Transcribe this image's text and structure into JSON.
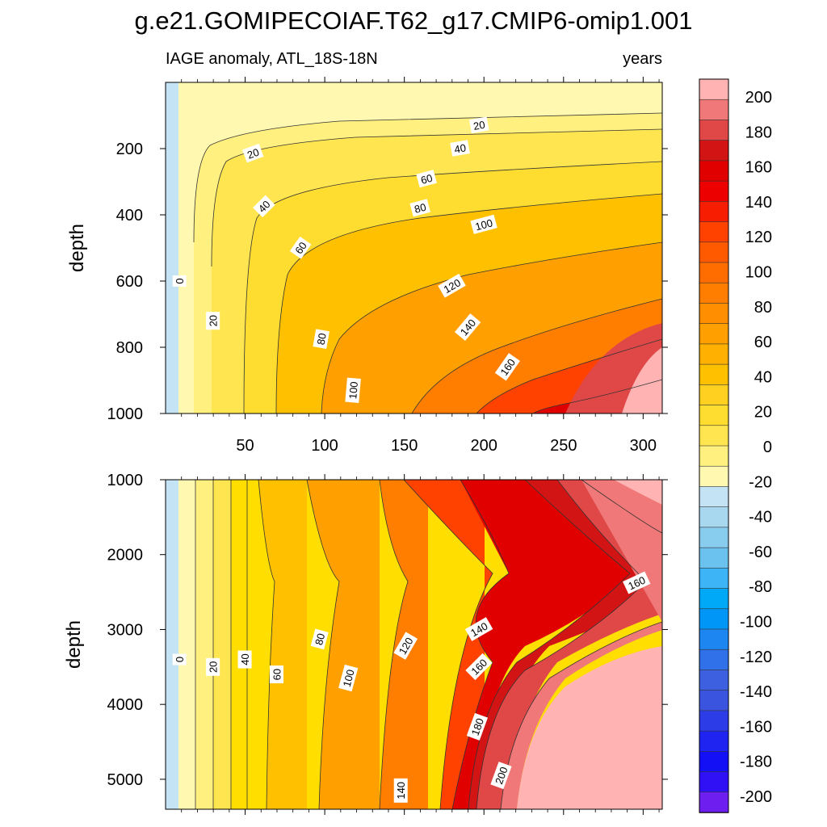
{
  "figure": {
    "title": "g.e21.GOMIPECOIAF.T62_g17.CMIP6-omip1.001",
    "subtitle_left": "IAGE anomaly, ATL_18S-18N",
    "subtitle_right": "years"
  },
  "chart_data": [
    {
      "type": "contour",
      "panel": "upper",
      "title": "IAGE anomaly, ATL_18S-18N",
      "units": "years",
      "xlabel": "",
      "ylabel": "depth",
      "xlim": [
        0,
        312
      ],
      "ylim": [
        1000,
        0
      ],
      "xticks": [
        50,
        100,
        150,
        200,
        250,
        300
      ],
      "yticks": [
        200,
        400,
        600,
        800,
        1000
      ],
      "contour_labels": [
        {
          "text": "0",
          "x": 9,
          "y": 600,
          "angle": -90
        },
        {
          "text": "20",
          "x": 30,
          "y": 720,
          "angle": -90
        },
        {
          "text": "20",
          "x": 55,
          "y": 215,
          "angle": -20
        },
        {
          "text": "40",
          "x": 62,
          "y": 375,
          "angle": -45
        },
        {
          "text": "60",
          "x": 85,
          "y": 500,
          "angle": -55
        },
        {
          "text": "80",
          "x": 98,
          "y": 775,
          "angle": -80
        },
        {
          "text": "100",
          "x": 118,
          "y": 930,
          "angle": -85
        },
        {
          "text": "20",
          "x": 197,
          "y": 130,
          "angle": -10
        },
        {
          "text": "40",
          "x": 185,
          "y": 200,
          "angle": -10
        },
        {
          "text": "60",
          "x": 164,
          "y": 292,
          "angle": -15
        },
        {
          "text": "80",
          "x": 160,
          "y": 380,
          "angle": -15
        },
        {
          "text": "100",
          "x": 200,
          "y": 430,
          "angle": -15
        },
        {
          "text": "120",
          "x": 180,
          "y": 615,
          "angle": -30
        },
        {
          "text": "140",
          "x": 190,
          "y": 740,
          "angle": -50
        },
        {
          "text": "160",
          "x": 215,
          "y": 860,
          "angle": -55
        }
      ]
    },
    {
      "type": "contour",
      "panel": "lower",
      "title": "",
      "units": "years",
      "xlabel": "",
      "ylabel": "depth",
      "xlim": [
        0,
        312
      ],
      "ylim": [
        5400,
        1000
      ],
      "xticks": [
        50,
        100,
        150,
        200,
        250,
        300
      ],
      "yticks": [
        1000,
        2000,
        3000,
        4000,
        5000
      ],
      "contour_labels": [
        {
          "text": "0",
          "x": 9,
          "y": 3400,
          "angle": -90
        },
        {
          "text": "20",
          "x": 30,
          "y": 3500,
          "angle": -90
        },
        {
          "text": "40",
          "x": 50,
          "y": 3400,
          "angle": -90
        },
        {
          "text": "60",
          "x": 70,
          "y": 3600,
          "angle": -90
        },
        {
          "text": "80",
          "x": 97,
          "y": 3130,
          "angle": -75
        },
        {
          "text": "100",
          "x": 115,
          "y": 3650,
          "angle": -75
        },
        {
          "text": "120",
          "x": 151,
          "y": 3220,
          "angle": -60
        },
        {
          "text": "140",
          "x": 197,
          "y": 3000,
          "angle": -30
        },
        {
          "text": "160",
          "x": 197,
          "y": 3500,
          "angle": -45
        },
        {
          "text": "160",
          "x": 296,
          "y": 2380,
          "angle": -25
        },
        {
          "text": "180",
          "x": 196,
          "y": 4300,
          "angle": -70
        },
        {
          "text": "200",
          "x": 211,
          "y": 4950,
          "angle": -70
        },
        {
          "text": "140",
          "x": 148,
          "y": 5150,
          "angle": -90
        }
      ]
    }
  ],
  "colorbar": {
    "labels": [
      "200",
      "180",
      "160",
      "140",
      "120",
      "100",
      "80",
      "60",
      "40",
      "20",
      "0",
      "-20",
      "-40",
      "-60",
      "-80",
      "-100",
      "-120",
      "-140",
      "-160",
      "-180",
      "-200"
    ],
    "colors": [
      "#ffb3b3",
      "#f07878",
      "#e04848",
      "#d21414",
      "#e00000",
      "#ec0000",
      "#f71d00",
      "#ff4200",
      "#ff5a00",
      "#ff6c00",
      "#ff7e00",
      "#ff8e00",
      "#ffa000",
      "#ffb000",
      "#ffc000",
      "#ffd020",
      "#ffdc30",
      "#ffe650",
      "#fff080",
      "#fff8b0",
      "#c4e4f6",
      "#a8d8f0",
      "#88ccee",
      "#6cc2ee",
      "#3cb4f6",
      "#00a8f8",
      "#0096f8",
      "#1e86f0",
      "#3070e8",
      "#3c60e0",
      "#3a54e0",
      "#2c3ce6",
      "#2024f0",
      "#1410f6",
      "#3010f4",
      "#6e1eee"
    ]
  }
}
